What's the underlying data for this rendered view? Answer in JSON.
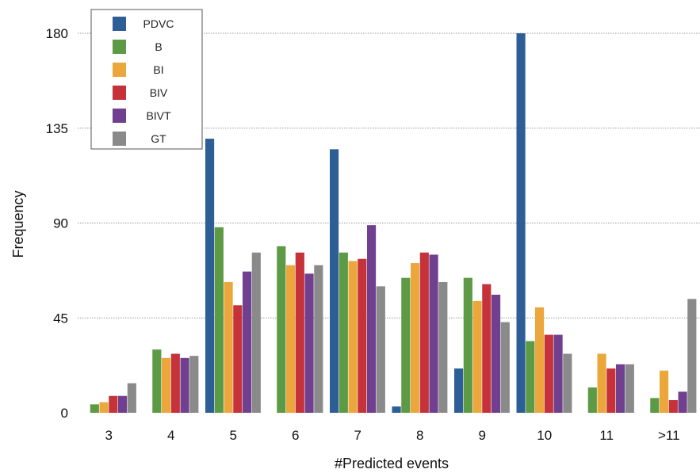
{
  "chart_data": {
    "type": "bar",
    "xlabel": "#Predicted events",
    "ylabel": "Frequency",
    "ylim": [
      0,
      180
    ],
    "yticks": [
      0,
      45,
      90,
      135,
      180
    ],
    "grid": "horizontal dotted",
    "legend_position": "top-left",
    "categories": [
      "3",
      "4",
      "5",
      "6",
      "7",
      "8",
      "9",
      "10",
      "11",
      ">11"
    ],
    "series": [
      {
        "name": "PDVC",
        "color": "#2e5e96",
        "values": [
          0,
          0,
          130,
          0,
          125,
          3,
          21,
          180,
          0,
          0
        ]
      },
      {
        "name": "B",
        "color": "#5d9a45",
        "values": [
          4,
          30,
          88,
          79,
          76,
          64,
          64,
          34,
          12,
          7
        ]
      },
      {
        "name": "BI",
        "color": "#eba73c",
        "values": [
          5,
          26,
          62,
          70,
          72,
          71,
          53,
          50,
          28,
          20
        ]
      },
      {
        "name": "BIV",
        "color": "#c5323a",
        "values": [
          8,
          28,
          51,
          76,
          73,
          76,
          61,
          37,
          21,
          6
        ]
      },
      {
        "name": "BIVT",
        "color": "#713f8f",
        "values": [
          8,
          26,
          67,
          66,
          89,
          75,
          56,
          37,
          23,
          10
        ]
      },
      {
        "name": "GT",
        "color": "#8a8a8a",
        "values": [
          14,
          27,
          76,
          70,
          60,
          62,
          43,
          28,
          23,
          54
        ]
      }
    ]
  }
}
